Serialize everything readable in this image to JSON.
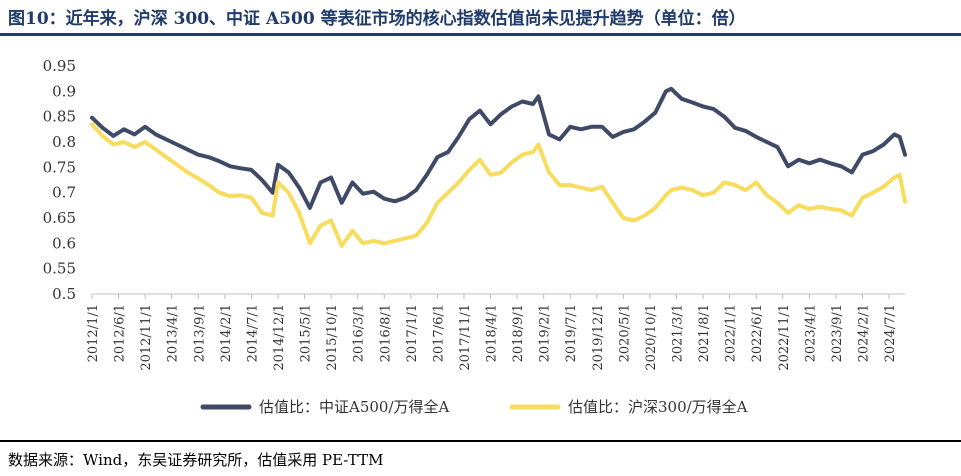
{
  "title": "图10：近年来，沪深 300、中证 A500 等表征市场的核心指数估值尚未见提升趋势（单位：倍）",
  "source": "数据来源：Wind，东吴证券研究所，估值采用 PE-TTM",
  "colors": {
    "series1": "#3f4a66",
    "series2": "#f7dc5e",
    "title": "#1f3a6b"
  },
  "chart_data": {
    "type": "line",
    "ylim": [
      0.5,
      0.95
    ],
    "yticks": [
      "0.95",
      "0.9",
      "0.85",
      "0.8",
      "0.75",
      "0.7",
      "0.65",
      "0.6",
      "0.55",
      "0.5"
    ],
    "xlim": [
      "2012/1/1",
      "2024/10/1"
    ],
    "xticks": [
      "2012/1/1",
      "2012/6/1",
      "2012/11/1",
      "2013/4/1",
      "2013/9/1",
      "2014/2/1",
      "2014/7/1",
      "2014/12/1",
      "2015/5/1",
      "2015/10/1",
      "2016/3/1",
      "2016/8/1",
      "2017/1/1",
      "2017/6/1",
      "2017/11/1",
      "2018/4/1",
      "2018/9/1",
      "2019/2/1",
      "2019/7/1",
      "2019/12/1",
      "2020/5/1",
      "2020/10/1",
      "2021/3/1",
      "2021/8/1",
      "2022/1/1",
      "2022/6/1",
      "2022/11/1",
      "2023/4/1",
      "2023/9/1",
      "2024/2/1",
      "2024/7/1"
    ],
    "legend_position": "bottom",
    "series": [
      {
        "name": "估值比：中证A500/万得全A",
        "color": "#3f4a66",
        "x": [
          "2012/1/1",
          "2012/3/1",
          "2012/5/1",
          "2012/7/1",
          "2012/9/1",
          "2012/11/1",
          "2013/1/1",
          "2013/3/1",
          "2013/5/1",
          "2013/7/1",
          "2013/9/1",
          "2013/11/1",
          "2014/1/1",
          "2014/3/1",
          "2014/5/1",
          "2014/7/1",
          "2014/9/1",
          "2014/11/1",
          "2014/12/1",
          "2015/2/1",
          "2015/4/1",
          "2015/6/1",
          "2015/8/1",
          "2015/10/1",
          "2015/12/1",
          "2016/2/1",
          "2016/4/1",
          "2016/6/1",
          "2016/8/1",
          "2016/10/1",
          "2016/12/1",
          "2017/2/1",
          "2017/4/1",
          "2017/6/1",
          "2017/8/1",
          "2017/10/1",
          "2017/12/1",
          "2018/2/1",
          "2018/4/1",
          "2018/6/1",
          "2018/8/1",
          "2018/10/1",
          "2018/12/1",
          "2019/1/1",
          "2019/3/1",
          "2019/5/1",
          "2019/7/1",
          "2019/9/1",
          "2019/11/1",
          "2020/1/1",
          "2020/3/1",
          "2020/5/1",
          "2020/7/1",
          "2020/9/1",
          "2020/11/1",
          "2021/1/1",
          "2021/2/1",
          "2021/4/1",
          "2021/6/1",
          "2021/8/1",
          "2021/10/1",
          "2021/12/1",
          "2022/2/1",
          "2022/4/1",
          "2022/6/1",
          "2022/8/1",
          "2022/10/1",
          "2022/12/1",
          "2023/2/1",
          "2023/4/1",
          "2023/6/1",
          "2023/8/1",
          "2023/10/1",
          "2023/12/1",
          "2024/2/1",
          "2024/4/1",
          "2024/6/1",
          "2024/8/1",
          "2024/9/1",
          "2024/10/1"
        ],
        "values": [
          0.848,
          0.828,
          0.812,
          0.825,
          0.815,
          0.83,
          0.815,
          0.805,
          0.795,
          0.785,
          0.775,
          0.77,
          0.762,
          0.752,
          0.748,
          0.745,
          0.725,
          0.7,
          0.755,
          0.74,
          0.71,
          0.67,
          0.72,
          0.73,
          0.68,
          0.72,
          0.698,
          0.702,
          0.688,
          0.683,
          0.69,
          0.705,
          0.735,
          0.77,
          0.78,
          0.81,
          0.845,
          0.862,
          0.835,
          0.855,
          0.87,
          0.88,
          0.875,
          0.89,
          0.815,
          0.805,
          0.83,
          0.825,
          0.83,
          0.83,
          0.81,
          0.82,
          0.825,
          0.84,
          0.858,
          0.9,
          0.905,
          0.885,
          0.878,
          0.87,
          0.865,
          0.85,
          0.828,
          0.822,
          0.81,
          0.8,
          0.79,
          0.752,
          0.765,
          0.758,
          0.765,
          0.758,
          0.752,
          0.74,
          0.775,
          0.782,
          0.795,
          0.815,
          0.81,
          0.775
        ]
      },
      {
        "name": "估值比：沪深300/万得全A",
        "color": "#f7dc5e",
        "x": [
          "2012/1/1",
          "2012/3/1",
          "2012/5/1",
          "2012/7/1",
          "2012/9/1",
          "2012/11/1",
          "2013/1/1",
          "2013/3/1",
          "2013/5/1",
          "2013/7/1",
          "2013/9/1",
          "2013/11/1",
          "2014/1/1",
          "2014/3/1",
          "2014/5/1",
          "2014/7/1",
          "2014/9/1",
          "2014/11/1",
          "2014/12/1",
          "2015/2/1",
          "2015/4/1",
          "2015/6/1",
          "2015/8/1",
          "2015/10/1",
          "2015/12/1",
          "2016/2/1",
          "2016/4/1",
          "2016/6/1",
          "2016/8/1",
          "2016/10/1",
          "2016/12/1",
          "2017/2/1",
          "2017/4/1",
          "2017/6/1",
          "2017/8/1",
          "2017/10/1",
          "2017/12/1",
          "2018/2/1",
          "2018/4/1",
          "2018/6/1",
          "2018/8/1",
          "2018/10/1",
          "2018/12/1",
          "2019/1/1",
          "2019/3/1",
          "2019/5/1",
          "2019/7/1",
          "2019/9/1",
          "2019/11/1",
          "2020/1/1",
          "2020/3/1",
          "2020/5/1",
          "2020/7/1",
          "2020/9/1",
          "2020/11/1",
          "2021/1/1",
          "2021/2/1",
          "2021/4/1",
          "2021/6/1",
          "2021/8/1",
          "2021/10/1",
          "2021/12/1",
          "2022/2/1",
          "2022/4/1",
          "2022/6/1",
          "2022/8/1",
          "2022/10/1",
          "2022/12/1",
          "2023/2/1",
          "2023/4/1",
          "2023/6/1",
          "2023/8/1",
          "2023/10/1",
          "2023/12/1",
          "2024/2/1",
          "2024/4/1",
          "2024/6/1",
          "2024/8/1",
          "2024/9/1",
          "2024/10/1"
        ],
        "values": [
          0.835,
          0.812,
          0.795,
          0.8,
          0.79,
          0.8,
          0.785,
          0.77,
          0.755,
          0.74,
          0.728,
          0.715,
          0.7,
          0.693,
          0.695,
          0.69,
          0.66,
          0.655,
          0.72,
          0.7,
          0.66,
          0.6,
          0.635,
          0.645,
          0.595,
          0.625,
          0.6,
          0.605,
          0.6,
          0.605,
          0.61,
          0.615,
          0.64,
          0.68,
          0.7,
          0.72,
          0.745,
          0.765,
          0.735,
          0.74,
          0.76,
          0.775,
          0.78,
          0.795,
          0.74,
          0.715,
          0.715,
          0.71,
          0.705,
          0.712,
          0.68,
          0.65,
          0.645,
          0.655,
          0.67,
          0.695,
          0.705,
          0.71,
          0.705,
          0.695,
          0.7,
          0.72,
          0.715,
          0.705,
          0.72,
          0.695,
          0.68,
          0.66,
          0.675,
          0.668,
          0.672,
          0.668,
          0.665,
          0.655,
          0.69,
          0.7,
          0.712,
          0.73,
          0.735,
          0.682
        ]
      }
    ]
  }
}
